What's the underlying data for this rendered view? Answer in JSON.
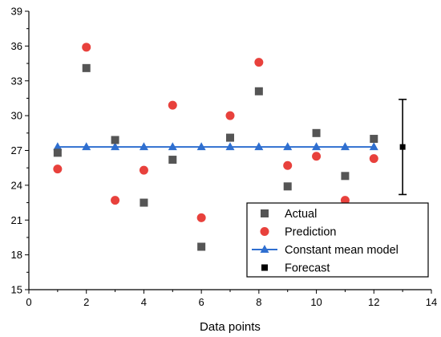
{
  "chart_data": {
    "type": "scatter",
    "xlabel": "Data points",
    "ylabel": "",
    "xlim": [
      0,
      14
    ],
    "ylim": [
      15,
      39
    ],
    "xticks": [
      0,
      2,
      4,
      6,
      8,
      10,
      12,
      14
    ],
    "yticks": [
      15,
      18,
      21,
      24,
      27,
      30,
      33,
      36,
      39
    ],
    "grid": false,
    "legend_position": "bottom-right",
    "series": [
      {
        "name": "Actual",
        "marker": "square",
        "color": "#555555",
        "x": [
          1,
          2,
          3,
          4,
          5,
          6,
          7,
          8,
          9,
          10,
          11,
          12
        ],
        "y": [
          26.8,
          34.1,
          27.9,
          22.5,
          26.2,
          18.7,
          28.1,
          32.1,
          23.9,
          28.5,
          24.8,
          28.0
        ]
      },
      {
        "name": "Prediction",
        "marker": "circle",
        "color": "#e8413c",
        "x": [
          1,
          2,
          3,
          4,
          5,
          6,
          7,
          8,
          9,
          10,
          11,
          12
        ],
        "y": [
          25.4,
          35.9,
          22.7,
          25.3,
          30.9,
          21.2,
          30.0,
          34.6,
          25.7,
          26.5,
          22.7,
          26.3
        ]
      },
      {
        "name": "Constant mean model",
        "marker": "triangle",
        "line": true,
        "color": "#2f6fd0",
        "x": [
          1,
          2,
          3,
          4,
          5,
          6,
          7,
          8,
          9,
          10,
          11,
          12
        ],
        "y": [
          27.3,
          27.3,
          27.3,
          27.3,
          27.3,
          27.3,
          27.3,
          27.3,
          27.3,
          27.3,
          27.3,
          27.3
        ]
      },
      {
        "name": "Forecast",
        "marker": "square",
        "color": "#000000",
        "x": [
          13
        ],
        "y": [
          27.3
        ],
        "error_low": [
          23.2
        ],
        "error_high": [
          31.4
        ]
      }
    ]
  }
}
